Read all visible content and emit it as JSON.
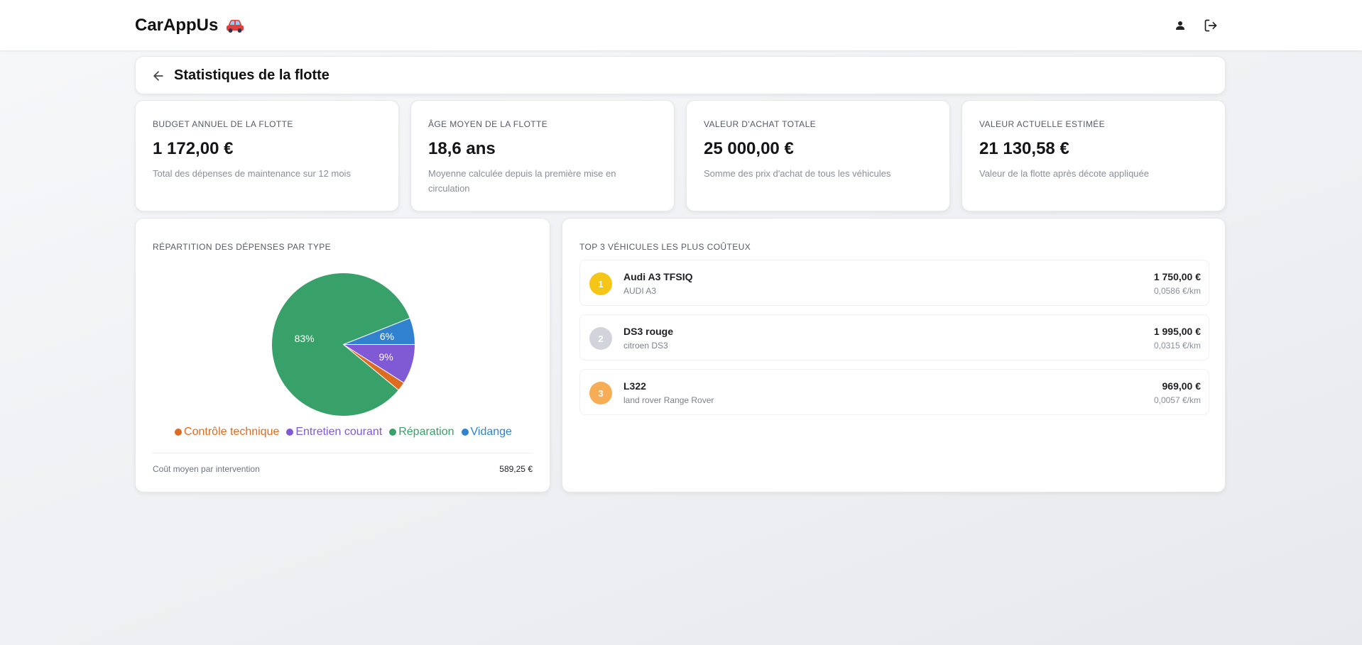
{
  "header": {
    "brand": "CarAppUs",
    "brand_icon": "car-icon",
    "user_icon": "user-icon",
    "logout_icon": "logout-icon"
  },
  "page": {
    "title": "Statistiques de la flotte",
    "back_icon": "arrow-left-icon"
  },
  "kpis": [
    {
      "label": "BUDGET ANNUEL DE LA FLOTTE",
      "value": "1 172,00 €",
      "desc": "Total des dépenses de maintenance sur 12 mois"
    },
    {
      "label": "ÂGE MOYEN DE LA FLOTTE",
      "value": "18,6 ans",
      "desc": "Moyenne calculée depuis la première mise en circulation"
    },
    {
      "label": "VALEUR D'ACHAT TOTALE",
      "value": "25 000,00 €",
      "desc": "Somme des prix d'achat de tous les véhicules"
    },
    {
      "label": "VALEUR ACTUELLE ESTIMÉE",
      "value": "21 130,58 €",
      "desc": "Valeur de la flotte après décote appliquée"
    }
  ],
  "expenses": {
    "title": "RÉPARTITION DES DÉPENSES PAR TYPE",
    "avg_label": "Coût moyen par intervention",
    "avg_value": "589,25 €"
  },
  "chart_data": {
    "type": "pie",
    "title": "RÉPARTITION DES DÉPENSES PAR TYPE",
    "categories": [
      "Contrôle technique",
      "Entretien courant",
      "Réparation",
      "Vidange"
    ],
    "values": [
      2,
      9,
      83,
      6
    ],
    "labels": [
      "",
      "9%",
      "83%",
      "6%"
    ],
    "colors": [
      "#dd6b20",
      "#805ad5",
      "#38a169",
      "#3182ce"
    ],
    "legend": "bottom"
  },
  "top_vehicles": {
    "title": "TOP 3 VÉHICULES LES PLUS COÛTEUX",
    "items": [
      {
        "rank": "1",
        "name": "Audi A3 TFSIQ",
        "model": "AUDI A3",
        "cost": "1 750,00 €",
        "per_km": "0,0586 €/km",
        "color": "#f5c518"
      },
      {
        "rank": "2",
        "name": "DS3 rouge",
        "model": "citroen DS3",
        "cost": "1 995,00 €",
        "per_km": "0,0315 €/km",
        "color": "#d1d5db"
      },
      {
        "rank": "3",
        "name": "L322",
        "model": "land rover Range Rover",
        "cost": "969,00 €",
        "per_km": "0,0057 €/km",
        "color": "#f6ad55"
      }
    ]
  }
}
